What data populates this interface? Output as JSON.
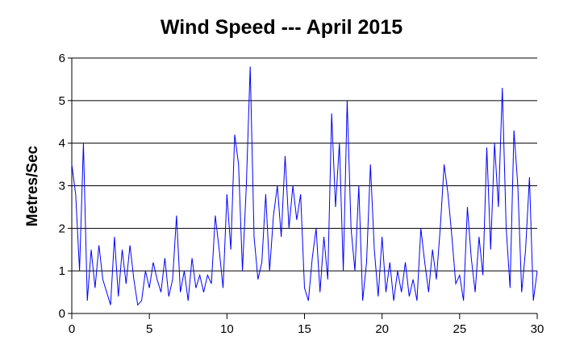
{
  "chart_data": {
    "type": "line",
    "title": "Wind Speed --- April 2015",
    "y_label": "Metres/Sec",
    "x": [
      0,
      0.25,
      0.5,
      0.75,
      1,
      1.25,
      1.5,
      1.75,
      2,
      2.25,
      2.5,
      2.75,
      3,
      3.25,
      3.5,
      3.75,
      4,
      4.25,
      4.5,
      4.75,
      5,
      5.25,
      5.5,
      5.75,
      6,
      6.25,
      6.5,
      6.75,
      7,
      7.25,
      7.5,
      7.75,
      8,
      8.25,
      8.5,
      8.75,
      9,
      9.25,
      9.5,
      9.75,
      10,
      10.25,
      10.5,
      10.75,
      11,
      11.25,
      11.5,
      11.75,
      12,
      12.25,
      12.5,
      12.75,
      13,
      13.25,
      13.5,
      13.75,
      14,
      14.25,
      14.5,
      14.75,
      15,
      15.25,
      15.5,
      15.75,
      16,
      16.25,
      16.5,
      16.75,
      17,
      17.25,
      17.5,
      17.75,
      18,
      18.25,
      18.5,
      18.75,
      19,
      19.25,
      19.5,
      19.75,
      20,
      20.25,
      20.5,
      20.75,
      21,
      21.25,
      21.5,
      21.75,
      22,
      22.25,
      22.5,
      22.75,
      23,
      23.25,
      23.5,
      23.75,
      24,
      24.25,
      24.5,
      24.75,
      25,
      25.25,
      25.5,
      25.75,
      26,
      26.25,
      26.5,
      26.75,
      27,
      27.25,
      27.5,
      27.75,
      28,
      28.25,
      28.5,
      28.75,
      29,
      29.25,
      29.5,
      29.75,
      30
    ],
    "series": [
      {
        "name": "Wind Speed",
        "color": "#0000ff",
        "values": [
          3.5,
          2.8,
          1.0,
          4.0,
          0.3,
          1.5,
          0.6,
          1.6,
          0.8,
          0.5,
          0.2,
          1.8,
          0.4,
          1.5,
          0.7,
          1.6,
          0.8,
          0.2,
          0.3,
          1.0,
          0.6,
          1.2,
          0.8,
          0.5,
          1.3,
          0.4,
          0.8,
          2.3,
          0.5,
          1.0,
          0.3,
          1.3,
          0.6,
          0.9,
          0.5,
          0.9,
          0.7,
          2.3,
          1.5,
          0.6,
          2.8,
          1.5,
          4.2,
          3.5,
          1.0,
          3.0,
          5.8,
          1.8,
          0.8,
          1.2,
          2.8,
          1.0,
          2.3,
          3.0,
          1.8,
          3.7,
          2.0,
          3.0,
          2.2,
          2.8,
          0.6,
          0.3,
          1.3,
          2.0,
          0.5,
          1.8,
          0.8,
          4.7,
          2.5,
          4.0,
          1.0,
          5.0,
          2.0,
          1.0,
          3.0,
          0.3,
          1.2,
          3.5,
          1.5,
          0.4,
          1.8,
          0.5,
          1.2,
          0.3,
          1.0,
          0.5,
          1.2,
          0.4,
          0.8,
          0.3,
          2.0,
          1.2,
          0.5,
          1.5,
          0.8,
          2.0,
          3.5,
          2.8,
          1.8,
          0.7,
          0.9,
          0.3,
          2.5,
          1.3,
          0.5,
          1.8,
          0.9,
          3.9,
          1.5,
          4.0,
          2.5,
          5.3,
          2.0,
          0.6,
          4.3,
          3.0,
          0.5,
          1.5,
          3.2,
          0.3,
          1.0
        ]
      }
    ],
    "xlim": [
      0,
      30
    ],
    "xticks": [
      0,
      5,
      10,
      15,
      20,
      25,
      30
    ],
    "ylim": [
      0,
      6
    ],
    "yticks": [
      0,
      1,
      2,
      3,
      4,
      5,
      6
    ],
    "grid": true
  }
}
